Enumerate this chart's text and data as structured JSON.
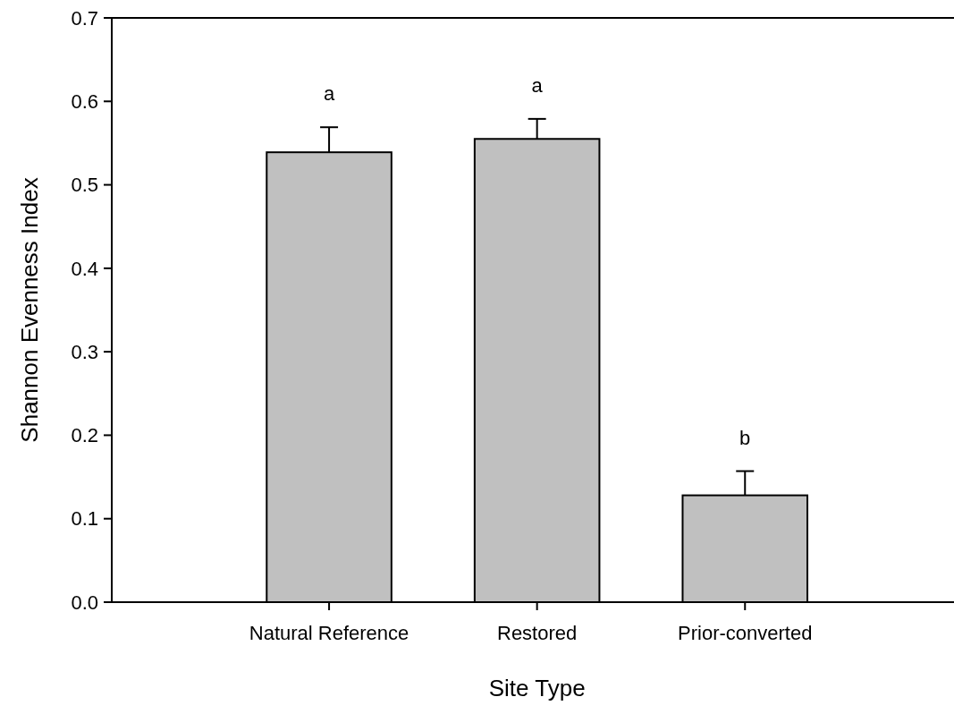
{
  "chart_data": {
    "type": "bar",
    "xlabel": "Site Type",
    "ylabel": "Shannon Evenness Index",
    "categories": [
      "Natural Reference",
      "Restored",
      "Prior-converted"
    ],
    "values": [
      0.539,
      0.555,
      0.128
    ],
    "errors": [
      [
        0.539,
        0.569
      ],
      [
        0.555,
        0.579
      ],
      [
        0.128,
        0.157
      ]
    ],
    "color": "#c0c0c0",
    "ylim": [
      0,
      0.7
    ],
    "yticks": [
      {
        "value": 0,
        "label": "0.0"
      },
      0.1,
      0.2,
      0.3,
      0.4,
      0.5,
      0.6,
      0.7
    ],
    "grid": false,
    "annotations": [
      "a",
      "a",
      "b"
    ]
  }
}
